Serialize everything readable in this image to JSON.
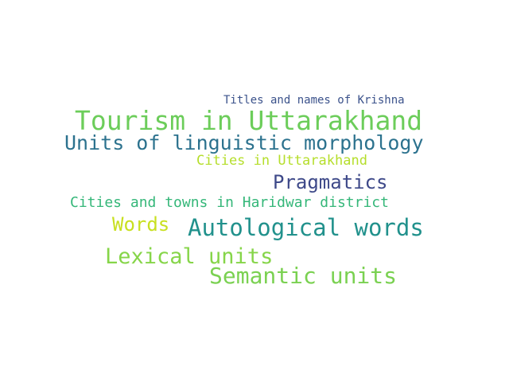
{
  "word_cloud": {
    "words": [
      {
        "text": "Titles and names of Krishna",
        "color": "#3b528b"
      },
      {
        "text": "Tourism in Uttarakhand",
        "color": "#6ccd5a"
      },
      {
        "text": "Units of linguistic morphology",
        "color": "#2c728e"
      },
      {
        "text": "Cities in Uttarakhand",
        "color": "#b5de2b"
      },
      {
        "text": "Pragmatics",
        "color": "#3e4989"
      },
      {
        "text": "Cities and towns in Haridwar district",
        "color": "#35b779"
      },
      {
        "text": "Words",
        "color": "#c8e020"
      },
      {
        "text": "Autological words",
        "color": "#21918c"
      },
      {
        "text": "Lexical units",
        "color": "#86d549"
      },
      {
        "text": "Semantic units",
        "color": "#7ad151"
      }
    ]
  }
}
